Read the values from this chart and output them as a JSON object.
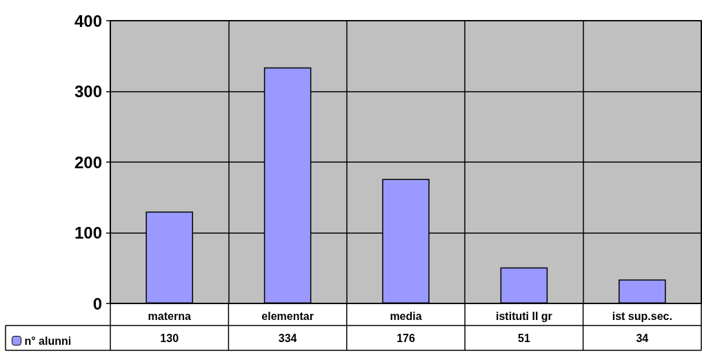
{
  "chart_data": {
    "type": "bar",
    "categories": [
      "materna",
      "elementar",
      "media",
      "istituti II gr",
      "ist sup.sec."
    ],
    "series": [
      {
        "name": "n° alunni",
        "color": "#9999ff",
        "values": [
          130,
          334,
          176,
          51,
          34
        ]
      }
    ],
    "ylim": [
      0,
      400
    ],
    "yticks": [
      0,
      100,
      200,
      300,
      400
    ],
    "grid": true,
    "legend": "bottom left",
    "data_labels": true
  }
}
